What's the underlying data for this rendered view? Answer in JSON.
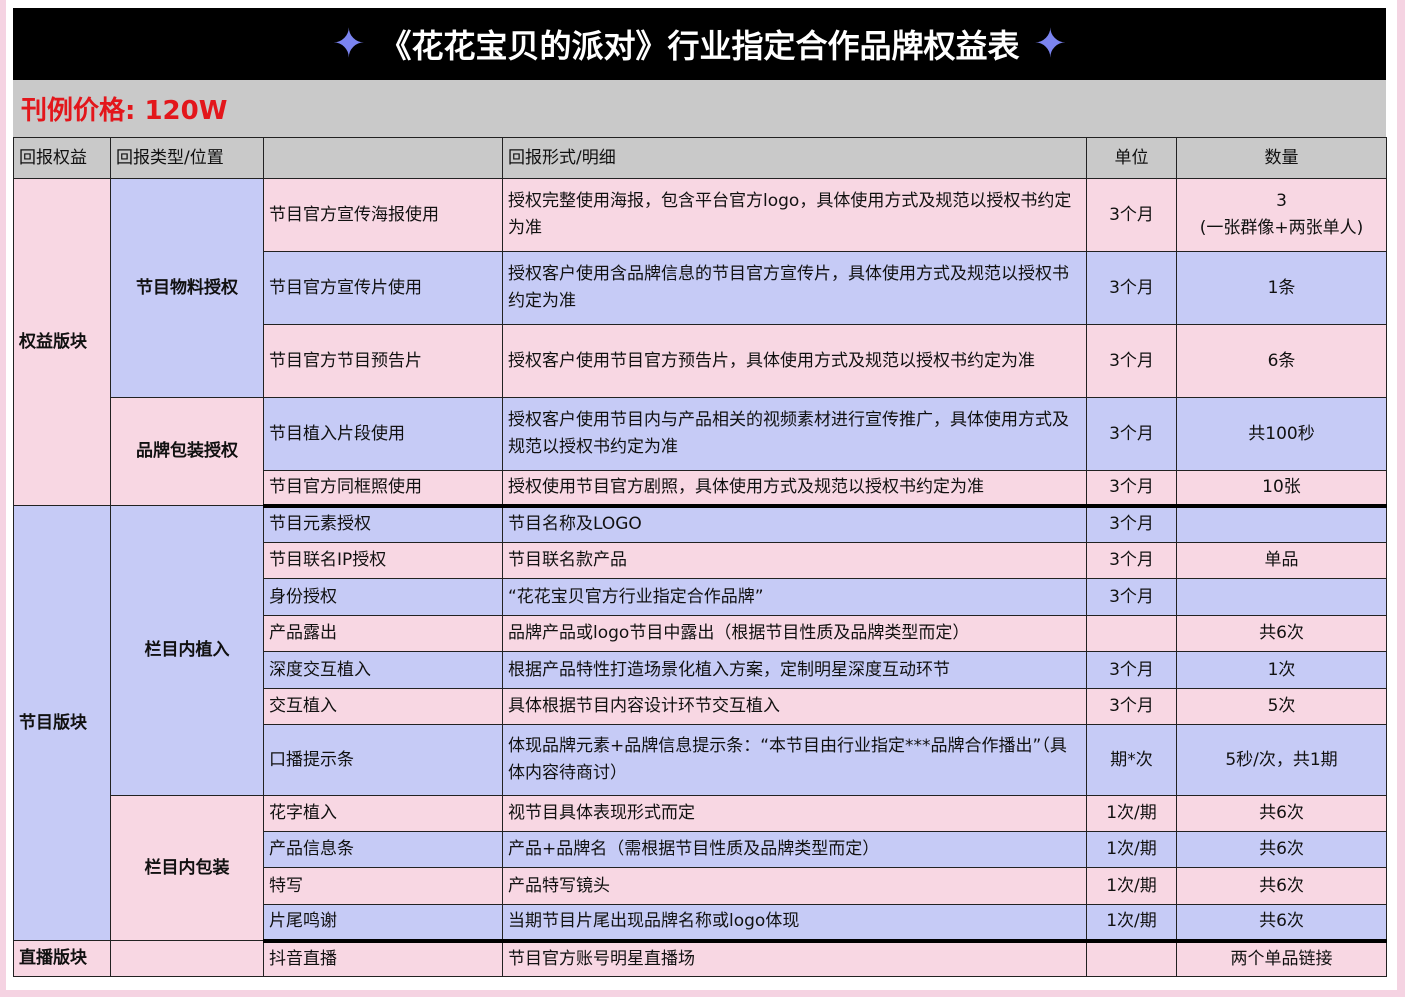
{
  "title": "《花花宝贝的派对》行业指定合作品牌权益表",
  "price": "刊例价格: 120W",
  "colors": {
    "pink": "#f8d7e3",
    "lavender": "#c6cbf6",
    "header_gray": "#c9c9c9",
    "price_red": "#e3161b",
    "star": "#7b84f0"
  },
  "headers": [
    "回报权益",
    "回报类型/位置",
    "",
    "回报形式/明细",
    "单位",
    "数量"
  ],
  "sections": {
    "s1": "权益版块",
    "s2": "节目版块",
    "s3": "直播版块"
  },
  "groups": {
    "g1": "节目物料授权",
    "g2": "品牌包装授权",
    "g3": "栏目内植入",
    "g4": "栏目内包装"
  },
  "rows": [
    {
      "item": "节目官方宣传海报使用",
      "detail": "授权完整使用海报，包含平台官方logo，具体使用方式及规范以授权书约定为准",
      "unit": "3个月",
      "qty": "3\n(一张群像+两张单人)"
    },
    {
      "item": "节目官方宣传片使用",
      "detail": "授权客户使用含品牌信息的节目官方宣传片，具体使用方式及规范以授权书约定为准",
      "unit": "3个月",
      "qty": "1条"
    },
    {
      "item": "节目官方节目预告片",
      "detail": "授权客户使用节目官方预告片，具体使用方式及规范以授权书约定为准",
      "unit": "3个月",
      "qty": "6条"
    },
    {
      "item": "节目植入片段使用",
      "detail": "授权客户使用节目内与产品相关的视频素材进行宣传推广，具体使用方式及规范以授权书约定为准",
      "unit": "3个月",
      "qty": "共100秒"
    },
    {
      "item": "节目官方同框照使用",
      "detail": "授权使用节目官方剧照，具体使用方式及规范以授权书约定为准",
      "unit": "3个月",
      "qty": "10张"
    },
    {
      "item": "节目元素授权",
      "detail": "节目名称及LOGO",
      "unit": "3个月",
      "qty": ""
    },
    {
      "item": "节目联名IP授权",
      "detail": "节目联名款产品",
      "unit": "3个月",
      "qty": "单品"
    },
    {
      "item": "身份授权",
      "detail": "“花花宝贝官方行业指定合作品牌”",
      "unit": "3个月",
      "qty": ""
    },
    {
      "item": "产品露出",
      "detail": "品牌产品或logo节目中露出（根据节目性质及品牌类型而定）",
      "unit": "",
      "qty": "共6次"
    },
    {
      "item": "深度交互植入",
      "detail": "根据产品特性打造场景化植入方案，定制明星深度互动环节",
      "unit": "3个月",
      "qty": "1次"
    },
    {
      "item": "交互植入",
      "detail": "具体根据节目内容设计环节交互植入",
      "unit": "3个月",
      "qty": "5次"
    },
    {
      "item": "口播提示条",
      "detail": "体现品牌元素+品牌信息提示条：“本节目由行业指定***品牌合作播出”（具体内容待商讨）",
      "unit": "期*次",
      "qty": "5秒/次，共1期"
    },
    {
      "item": "花字植入",
      "detail": "视节目具体表现形式而定",
      "unit": "1次/期",
      "qty": "共6次"
    },
    {
      "item": "产品信息条",
      "detail": "产品+品牌名（需根据节目性质及品牌类型而定）",
      "unit": "1次/期",
      "qty": "共6次"
    },
    {
      "item": "特写",
      "detail": "产品特写镜头",
      "unit": "1次/期",
      "qty": "共6次"
    },
    {
      "item": "片尾鸣谢",
      "detail": "当期节目片尾出现品牌名称或logo体现",
      "unit": "1次/期",
      "qty": "共6次"
    },
    {
      "item": "抖音直播",
      "detail": "节目官方账号明星直播场",
      "unit": "",
      "qty": "两个单品链接"
    }
  ]
}
